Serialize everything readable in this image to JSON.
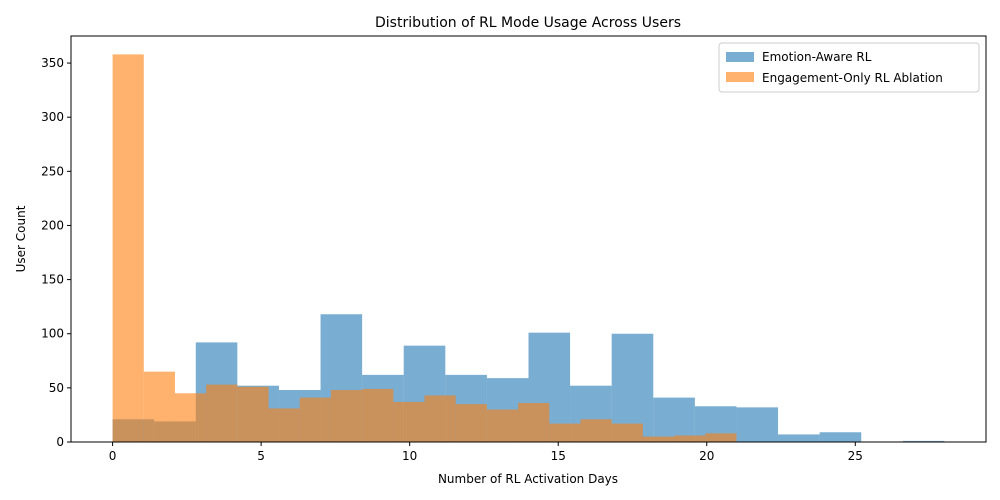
{
  "chart_data": {
    "type": "bar",
    "title": "Distribution of RL Mode Usage Across Users",
    "xlabel": "Number of RL Activation Days",
    "ylabel": "User Count",
    "xlim": [
      -1.4,
      29.4
    ],
    "ylim": [
      0,
      375
    ],
    "xticks": [
      0,
      5,
      10,
      15,
      20,
      25
    ],
    "yticks": [
      0,
      50,
      100,
      150,
      200,
      250,
      300,
      350
    ],
    "legend_position": "top-right",
    "series": [
      {
        "name": "Emotion-Aware RL",
        "color": "#1f77b4",
        "opacity": 0.6,
        "bin_edges": [
          0,
          1.4,
          2.8,
          4.2,
          5.6,
          7.0,
          8.4,
          9.8,
          11.2,
          12.6,
          14.0,
          15.4,
          16.8,
          18.2,
          19.6,
          21.0,
          22.4,
          23.8,
          25.2,
          26.6,
          28.0
        ],
        "values": [
          21,
          19,
          92,
          52,
          48,
          118,
          62,
          89,
          62,
          59,
          101,
          52,
          100,
          41,
          33,
          32,
          7,
          9,
          0,
          1
        ]
      },
      {
        "name": "Engagement-Only RL Ablation",
        "color": "#ff7f0e",
        "opacity": 0.6,
        "bin_edges": [
          0,
          1.05,
          2.1,
          3.15,
          4.2,
          5.25,
          6.3,
          7.35,
          8.4,
          9.45,
          10.5,
          11.55,
          12.6,
          13.65,
          14.7,
          15.75,
          16.8,
          17.85,
          18.9,
          19.95,
          21.0
        ],
        "values": [
          358,
          65,
          45,
          53,
          51,
          31,
          41,
          48,
          49,
          37,
          43,
          35,
          30,
          36,
          17,
          21,
          17,
          5,
          6,
          8
        ]
      }
    ]
  }
}
